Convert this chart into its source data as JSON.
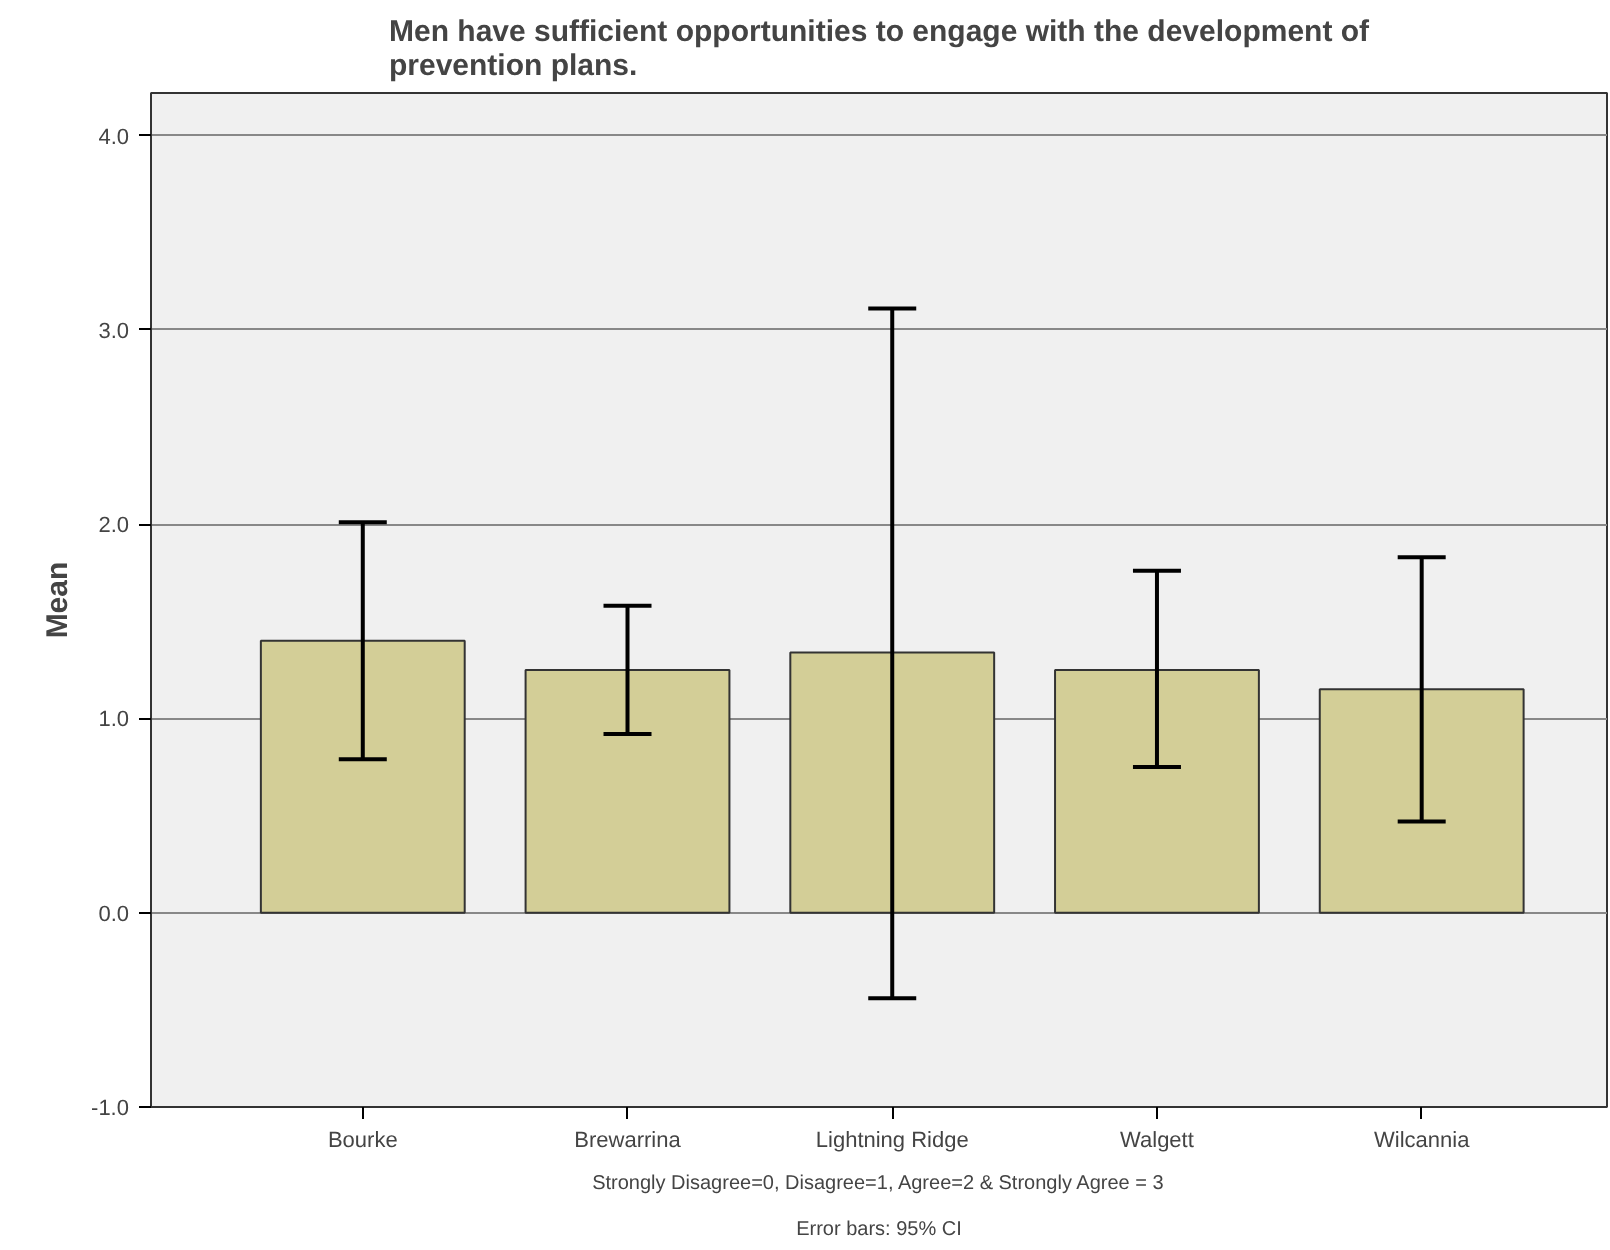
{
  "chart_data": {
    "type": "bar",
    "title": "Men have sufficient opportunities to engage with the development of\nprevention plans.",
    "ylabel": "Mean",
    "categories": [
      "Bourke",
      "Brewarrina",
      "Lightning Ridge",
      "Walgett",
      "Wilcannia"
    ],
    "values": [
      1.4,
      1.25,
      1.34,
      1.25,
      1.15
    ],
    "errors": [
      [
        0.79,
        2.01
      ],
      [
        0.92,
        1.58
      ],
      [
        -0.44,
        3.11
      ],
      [
        0.75,
        1.76
      ],
      [
        0.47,
        1.83
      ]
    ],
    "color": "#d3ce97",
    "ylim": [
      -1.0,
      4.22
    ],
    "yticks": [
      {
        "value": -1,
        "label": "-1.0"
      },
      {
        "value": 0,
        "label": "0.0"
      },
      {
        "value": 1,
        "label": "1.0"
      },
      {
        "value": 2,
        "label": "2.0"
      },
      {
        "value": 3,
        "label": "3.0"
      },
      {
        "value": 4,
        "label": "4.0"
      }
    ],
    "grid": "y",
    "annotations": [
      "Strongly Disagree=0, Disagree=1, Agree=2 & Strongly Agree = 3",
      "Error bars: 95% CI"
    ]
  }
}
